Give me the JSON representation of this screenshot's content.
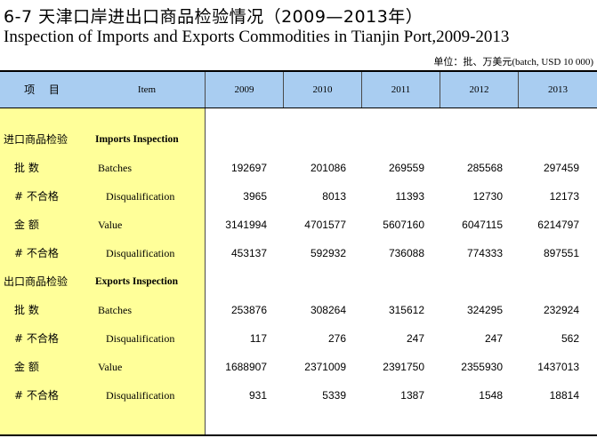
{
  "title_zh": "6-7   天津口岸进出口商品检验情况（2009—2013年）",
  "title_en": "Inspection of Imports and Exports Commodities in Tianjin Port,2009-2013",
  "unit": "单位：批、万美元(batch, USD 10 000)",
  "header": {
    "item_zh": "项  目",
    "item_en": "Item",
    "years": [
      "2009",
      "2010",
      "2011",
      "2012",
      "2013"
    ]
  },
  "rows": [
    {
      "zh": "进口商品检验",
      "en": "Imports Inspection",
      "section": true,
      "values": []
    },
    {
      "zh": "批   数",
      "en": "Batches",
      "values": [
        "192697",
        "201086",
        "269559",
        "285568",
        "297459"
      ]
    },
    {
      "zh": "# 不合格",
      "en": "Disqualification",
      "values": [
        "3965",
        "8013",
        "11393",
        "12730",
        "12173"
      ]
    },
    {
      "zh": "金   额",
      "en": "Value",
      "values": [
        "3141994",
        "4701577",
        "5607160",
        "6047115",
        "6214797"
      ]
    },
    {
      "zh": "# 不合格",
      "en": "Disqualification",
      "values": [
        "453137",
        "592932",
        "736088",
        "774333",
        "897551"
      ]
    },
    {
      "zh": "出口商品检验",
      "en": "Exports Inspection",
      "section": true,
      "values": []
    },
    {
      "zh": "批   数",
      "en": "Batches",
      "values": [
        "253876",
        "308264",
        "315612",
        "324295",
        "232924"
      ]
    },
    {
      "zh": "# 不合格",
      "en": "Disqualification",
      "values": [
        "117",
        "276",
        "247",
        "247",
        "562"
      ]
    },
    {
      "zh": "金   额",
      "en": "Value",
      "values": [
        "1688907",
        "2371009",
        "2391750",
        "2355930",
        "1437013"
      ]
    },
    {
      "zh": "# 不合格",
      "en": "Disqualification",
      "values": [
        "931",
        "5339",
        "1387",
        "1548",
        "18814"
      ]
    }
  ]
}
